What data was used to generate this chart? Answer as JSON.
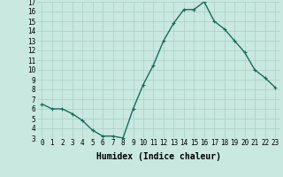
{
  "x": [
    0,
    1,
    2,
    3,
    4,
    5,
    6,
    7,
    8,
    9,
    10,
    11,
    12,
    13,
    14,
    15,
    16,
    17,
    18,
    19,
    20,
    21,
    22,
    23
  ],
  "y": [
    6.5,
    6.0,
    6.0,
    5.5,
    4.8,
    3.8,
    3.2,
    3.2,
    3.0,
    6.0,
    8.5,
    10.5,
    13.0,
    14.8,
    16.2,
    16.2,
    17.0,
    15.0,
    14.2,
    13.0,
    11.8,
    10.0,
    9.2,
    8.2
  ],
  "line_color": "#1a6b5a",
  "marker": "+",
  "marker_size": 3,
  "bg_color": "#c8e8e0",
  "grid_color": "#aacfc8",
  "xlabel": "Humidex (Indice chaleur)",
  "ylim": [
    3,
    17
  ],
  "xlim": [
    -0.5,
    23.5
  ],
  "yticks": [
    3,
    4,
    5,
    6,
    7,
    8,
    9,
    10,
    11,
    12,
    13,
    14,
    15,
    16,
    17
  ],
  "xticks": [
    0,
    1,
    2,
    3,
    4,
    5,
    6,
    7,
    8,
    9,
    10,
    11,
    12,
    13,
    14,
    15,
    16,
    17,
    18,
    19,
    20,
    21,
    22,
    23
  ],
  "tick_fontsize": 5.5,
  "label_fontsize": 7,
  "line_width": 1.0,
  "marker_edge_width": 0.8
}
